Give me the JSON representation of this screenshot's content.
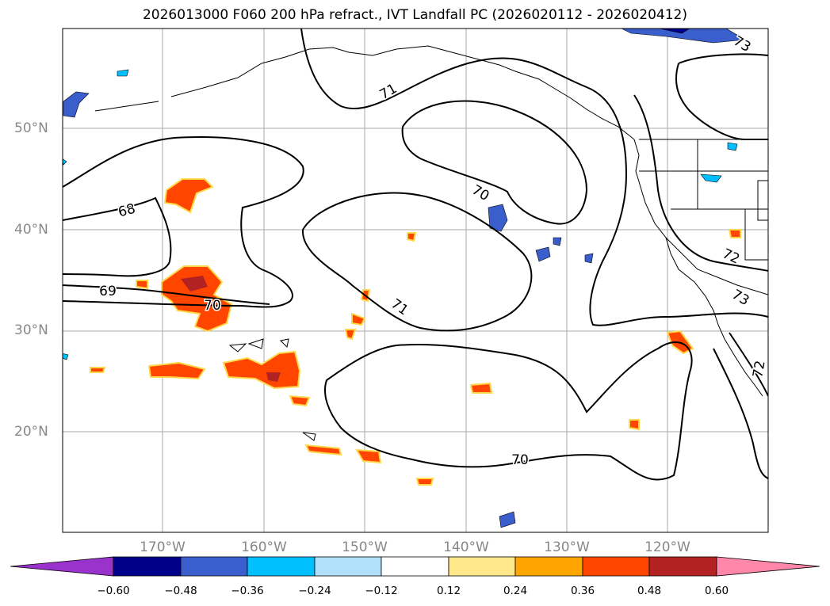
{
  "title": "2026013000 F060 200 hPa refract., IVT Landfall PC (2026020112 - 2026020412)",
  "lat_labels": [
    "50°N",
    "40°N",
    "30°N",
    "20°N"
  ],
  "lon_labels": [
    "170°W",
    "160°W",
    "150°W",
    "140°W",
    "130°W",
    "120°W"
  ],
  "contour_labels": [
    "71",
    "70",
    "68",
    "69",
    "70",
    "71",
    "70",
    "73",
    "72",
    "73",
    "72"
  ],
  "colorbar": {
    "ticks": [
      "−0.60",
      "−0.48",
      "−0.36",
      "−0.24",
      "−0.12",
      "0.12",
      "0.24",
      "0.36",
      "0.48",
      "0.60"
    ],
    "colors": [
      "#9933cc",
      "#00008b",
      "#3a5fcd",
      "#00bfff",
      "#b0e0fa",
      "#ffffff",
      "#ffe88a",
      "#ffa500",
      "#ff4500",
      "#b22222",
      "#ff88aa"
    ]
  }
}
